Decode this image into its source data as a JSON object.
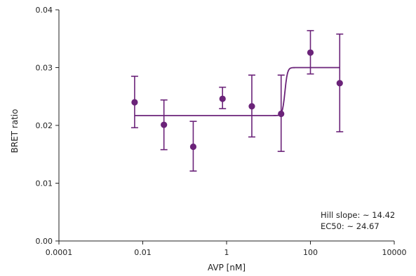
{
  "chart_data": {
    "type": "scatter",
    "xlabel": "AVP [nM]",
    "ylabel": "BRET ratio",
    "x_scale": "log",
    "xlim": [
      0.0001,
      10000
    ],
    "ylim": [
      0,
      0.04
    ],
    "x_ticks": [
      0.0001,
      0.01,
      1,
      100,
      10000
    ],
    "x_tick_labels": [
      "0.0001",
      "0.01",
      "1",
      "100",
      "10000"
    ],
    "y_ticks": [
      0,
      0.01,
      0.02,
      0.03,
      0.04
    ],
    "y_tick_labels": [
      "0.00",
      "0.01",
      "0.02",
      "0.03",
      "0.04"
    ],
    "grid": false,
    "points": [
      {
        "x": 0.0064,
        "y": 0.024,
        "err_low": 0.0196,
        "err_high": 0.0285
      },
      {
        "x": 0.032,
        "y": 0.0201,
        "err_low": 0.0158,
        "err_high": 0.0244
      },
      {
        "x": 0.16,
        "y": 0.0163,
        "err_low": 0.0121,
        "err_high": 0.0207
      },
      {
        "x": 0.8,
        "y": 0.0246,
        "err_low": 0.0229,
        "err_high": 0.0266
      },
      {
        "x": 4.0,
        "y": 0.0233,
        "err_low": 0.018,
        "err_high": 0.0287
      },
      {
        "x": 20.0,
        "y": 0.022,
        "err_low": 0.0155,
        "err_high": 0.0287
      },
      {
        "x": 100.0,
        "y": 0.0326,
        "err_low": 0.0289,
        "err_high": 0.0364
      },
      {
        "x": 500.0,
        "y": 0.0273,
        "err_low": 0.0189,
        "err_high": 0.0358
      }
    ],
    "fit": {
      "x_range": [
        0.0064,
        500
      ],
      "bottom": 0.0217,
      "top": 0.03,
      "ec50": 24.67,
      "hill_slope": 14.42
    },
    "annotations": [
      "Hill slope: ~ 14.42",
      "EC50: ~ 24.67"
    ],
    "colors": {
      "series": "#6b2379",
      "axis": "#222222"
    }
  }
}
